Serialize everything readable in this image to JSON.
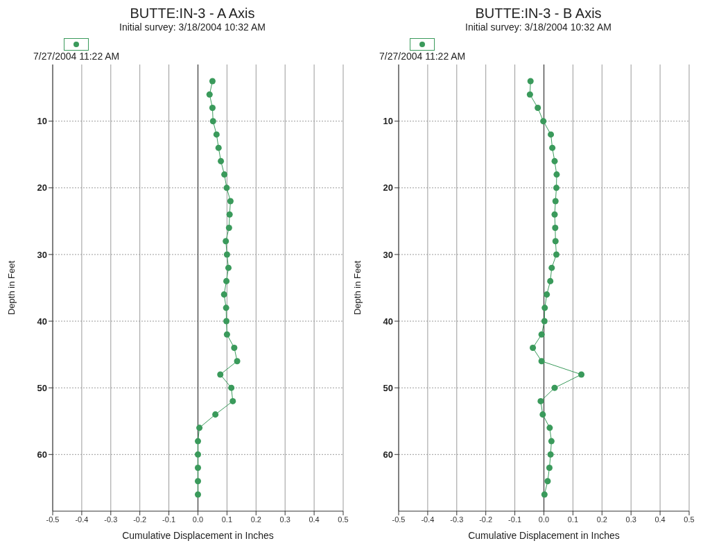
{
  "chart_data": [
    {
      "type": "line",
      "title": "BUTTE:IN-3 - A Axis",
      "subtitle": "Initial survey: 3/18/2004 10:32 AM",
      "xlabel": "Cumulative Displacement in Inches",
      "ylabel": "Depth in Feet",
      "legend": "top left",
      "marker": "circle",
      "line_style": "solid",
      "grid": true,
      "xlim": [
        -0.5,
        0.5
      ],
      "xticks": [
        -0.5,
        -0.4,
        -0.3,
        -0.2,
        -0.1,
        {
          "value": 0,
          "label": "0.0"
        },
        0.1,
        0.2,
        0.3,
        0.4,
        0.5
      ],
      "ylim": [
        68.5,
        1.5
      ],
      "yticks": [
        10,
        20,
        30,
        40,
        50,
        60
      ],
      "ref_lines": [
        {
          "axis": "x",
          "value": 0,
          "color": "#555555"
        }
      ],
      "series": [
        {
          "name": "7/27/2004 11:22 AM",
          "color": "#3a9a5b",
          "x": [
            0.05,
            0.04,
            0.05,
            0.052,
            0.064,
            0.071,
            0.079,
            0.091,
            0.099,
            0.112,
            0.109,
            0.107,
            0.096,
            0.1,
            0.105,
            0.098,
            0.09,
            0.097,
            0.098,
            0.1,
            0.125,
            0.135,
            0.077,
            0.115,
            0.12,
            0.06,
            0.005,
            0,
            0,
            0,
            0,
            0
          ],
          "values": [
            4,
            6,
            8,
            10,
            12,
            14,
            16,
            18,
            20,
            22,
            24,
            26,
            28,
            30,
            32,
            34,
            36,
            38,
            40,
            42,
            44,
            46,
            48,
            50,
            52,
            54,
            56,
            58,
            60,
            62,
            64,
            66
          ]
        }
      ]
    },
    {
      "type": "line",
      "title": "BUTTE:IN-3 - B Axis",
      "subtitle": "Initial survey: 3/18/2004 10:32 AM",
      "xlabel": "Cumulative Displacement in Inches",
      "ylabel": "Depth in Feet",
      "legend": "top left",
      "marker": "circle",
      "line_style": "solid",
      "grid": true,
      "xlim": [
        -0.5,
        0.5
      ],
      "xticks": [
        -0.5,
        -0.4,
        -0.3,
        -0.2,
        -0.1,
        {
          "value": 0,
          "label": "0.0"
        },
        0.1,
        0.2,
        0.3,
        0.4,
        0.5
      ],
      "ylim": [
        68.5,
        1.5
      ],
      "yticks": [
        10,
        20,
        30,
        40,
        50,
        60
      ],
      "ref_lines": [
        {
          "axis": "x",
          "value": 0,
          "color": "#555555"
        }
      ],
      "series": [
        {
          "name": "7/27/2004 11:22 AM",
          "color": "#3a9a5b",
          "x": [
            -0.046,
            -0.048,
            -0.021,
            -0.002,
            0.024,
            0.029,
            0.037,
            0.044,
            0.043,
            0.04,
            0.037,
            0.039,
            0.04,
            0.043,
            0.027,
            0.022,
            0.01,
            0.003,
            0.002,
            -0.008,
            -0.038,
            -0.008,
            0.129,
            0.037,
            -0.011,
            -0.004,
            0.02,
            0.026,
            0.023,
            0.019,
            0.013,
            0.002
          ],
          "values": [
            4,
            6,
            8,
            10,
            12,
            14,
            16,
            18,
            20,
            22,
            24,
            26,
            28,
            30,
            32,
            34,
            36,
            38,
            40,
            42,
            44,
            46,
            48,
            50,
            52,
            54,
            56,
            58,
            60,
            62,
            64,
            66
          ]
        }
      ]
    }
  ]
}
